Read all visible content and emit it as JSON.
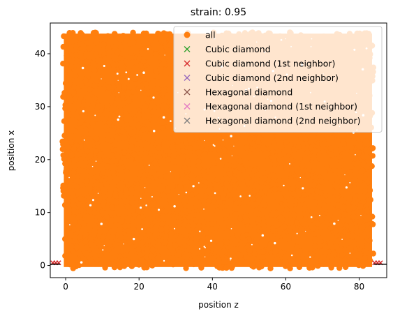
{
  "chart_data": {
    "type": "scatter",
    "title": "strain: 0.95",
    "xlabel": "position z",
    "ylabel": "position x",
    "xlim": [
      -4.2,
      87.5
    ],
    "ylim": [
      -2.3,
      45.8
    ],
    "xticks": [
      0,
      20,
      40,
      60,
      80
    ],
    "yticks": [
      0,
      10,
      20,
      30,
      40
    ],
    "grid": false,
    "legend_position": "upper-right",
    "series": [
      {
        "name": "all",
        "marker": "o",
        "color": "#ff7f0e",
        "description": "dense cloud of points filling the region",
        "x_range": [
          -0.5,
          83.5
        ],
        "y_range": [
          -0.3,
          43.8
        ]
      },
      {
        "name": "Cubic diamond",
        "marker": "x",
        "color": "#2ca02c",
        "points": []
      },
      {
        "name": "Cubic diamond (1st neighbor)",
        "marker": "x",
        "color": "#d62728",
        "points": [
          {
            "x": -3.5,
            "y": 0.5
          },
          {
            "x": -2.7,
            "y": 0.5
          },
          {
            "x": -1.9,
            "y": 0.5
          },
          {
            "x": 84.2,
            "y": 0.5
          },
          {
            "x": 85.0,
            "y": 0.5
          },
          {
            "x": 85.8,
            "y": 0.5
          }
        ]
      },
      {
        "name": "Cubic diamond (2nd neighbor)",
        "marker": "x",
        "color": "#9467bd",
        "points": []
      },
      {
        "name": "Hexagonal diamond",
        "marker": "x",
        "color": "#8c564b",
        "points": []
      },
      {
        "name": "Hexagonal diamond (1st neighbor)",
        "marker": "x",
        "color": "#e377c2",
        "points": []
      },
      {
        "name": "Hexagonal diamond (2nd neighbor)",
        "marker": "x",
        "color": "#7f7f7f",
        "points": []
      }
    ]
  }
}
